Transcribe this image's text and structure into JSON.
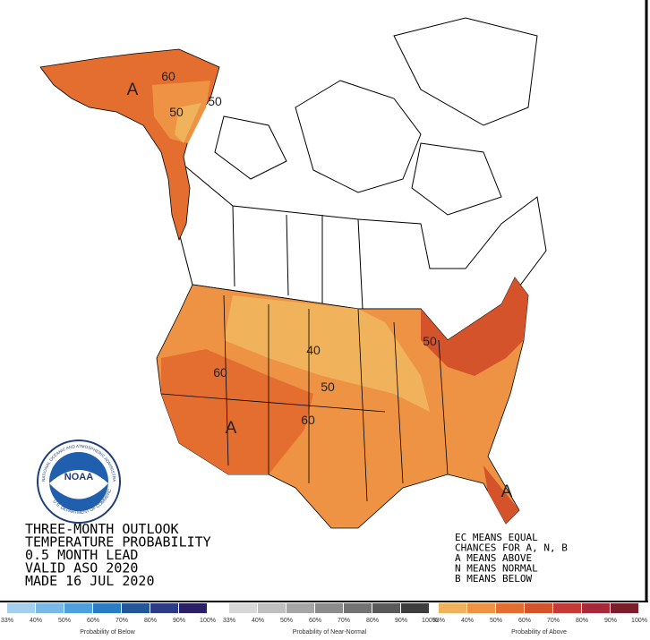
{
  "header": {
    "lines": [
      "THREE-MONTH OUTLOOK",
      "TEMPERATURE PROBABILITY",
      "0.5 MONTH LEAD",
      "VALID ASO 2020",
      "MADE 16 JUL 2020"
    ]
  },
  "key": {
    "lines": [
      "EC MEANS EQUAL",
      "CHANCES FOR A, N, B",
      "A MEANS ABOVE",
      "N MEANS NORMAL",
      "B MEANS BELOW"
    ]
  },
  "logo": {
    "name": "NOAA",
    "ring_top": "NATIONAL OCEANIC AND ATMOSPHERIC ADMINISTRATION",
    "ring_bottom": "U.S. DEPARTMENT OF COMMERCE"
  },
  "map": {
    "labels": [
      "A",
      "60",
      "50",
      "50",
      "40",
      "50",
      "60",
      "60",
      "A",
      "50",
      "A"
    ]
  },
  "legends": [
    {
      "title": "Probability of Below",
      "ticks": [
        "33%",
        "40%",
        "50%",
        "60%",
        "70%",
        "80%",
        "90%",
        "100%"
      ],
      "colors": [
        "#a6cfee",
        "#7ab8e8",
        "#4ea0dc",
        "#2a7cc4",
        "#23579a",
        "#2d3a86",
        "#2b1f66"
      ]
    },
    {
      "title": "Probability of Near-Normal",
      "ticks": [
        "33%",
        "40%",
        "50%",
        "60%",
        "70%",
        "80%",
        "90%",
        "100%"
      ],
      "colors": [
        "#d8d8d8",
        "#bfbfbf",
        "#a6a6a6",
        "#8c8c8c",
        "#737373",
        "#595959",
        "#3d3d3d"
      ]
    },
    {
      "title": "Probability of Above",
      "ticks": [
        "33%",
        "40%",
        "50%",
        "60%",
        "70%",
        "80%",
        "90%",
        "100%"
      ],
      "colors": [
        "#f0b35c",
        "#ee9244",
        "#e36e2f",
        "#d4532a",
        "#c63a36",
        "#a82a3a",
        "#7c1d2a"
      ]
    }
  ]
}
